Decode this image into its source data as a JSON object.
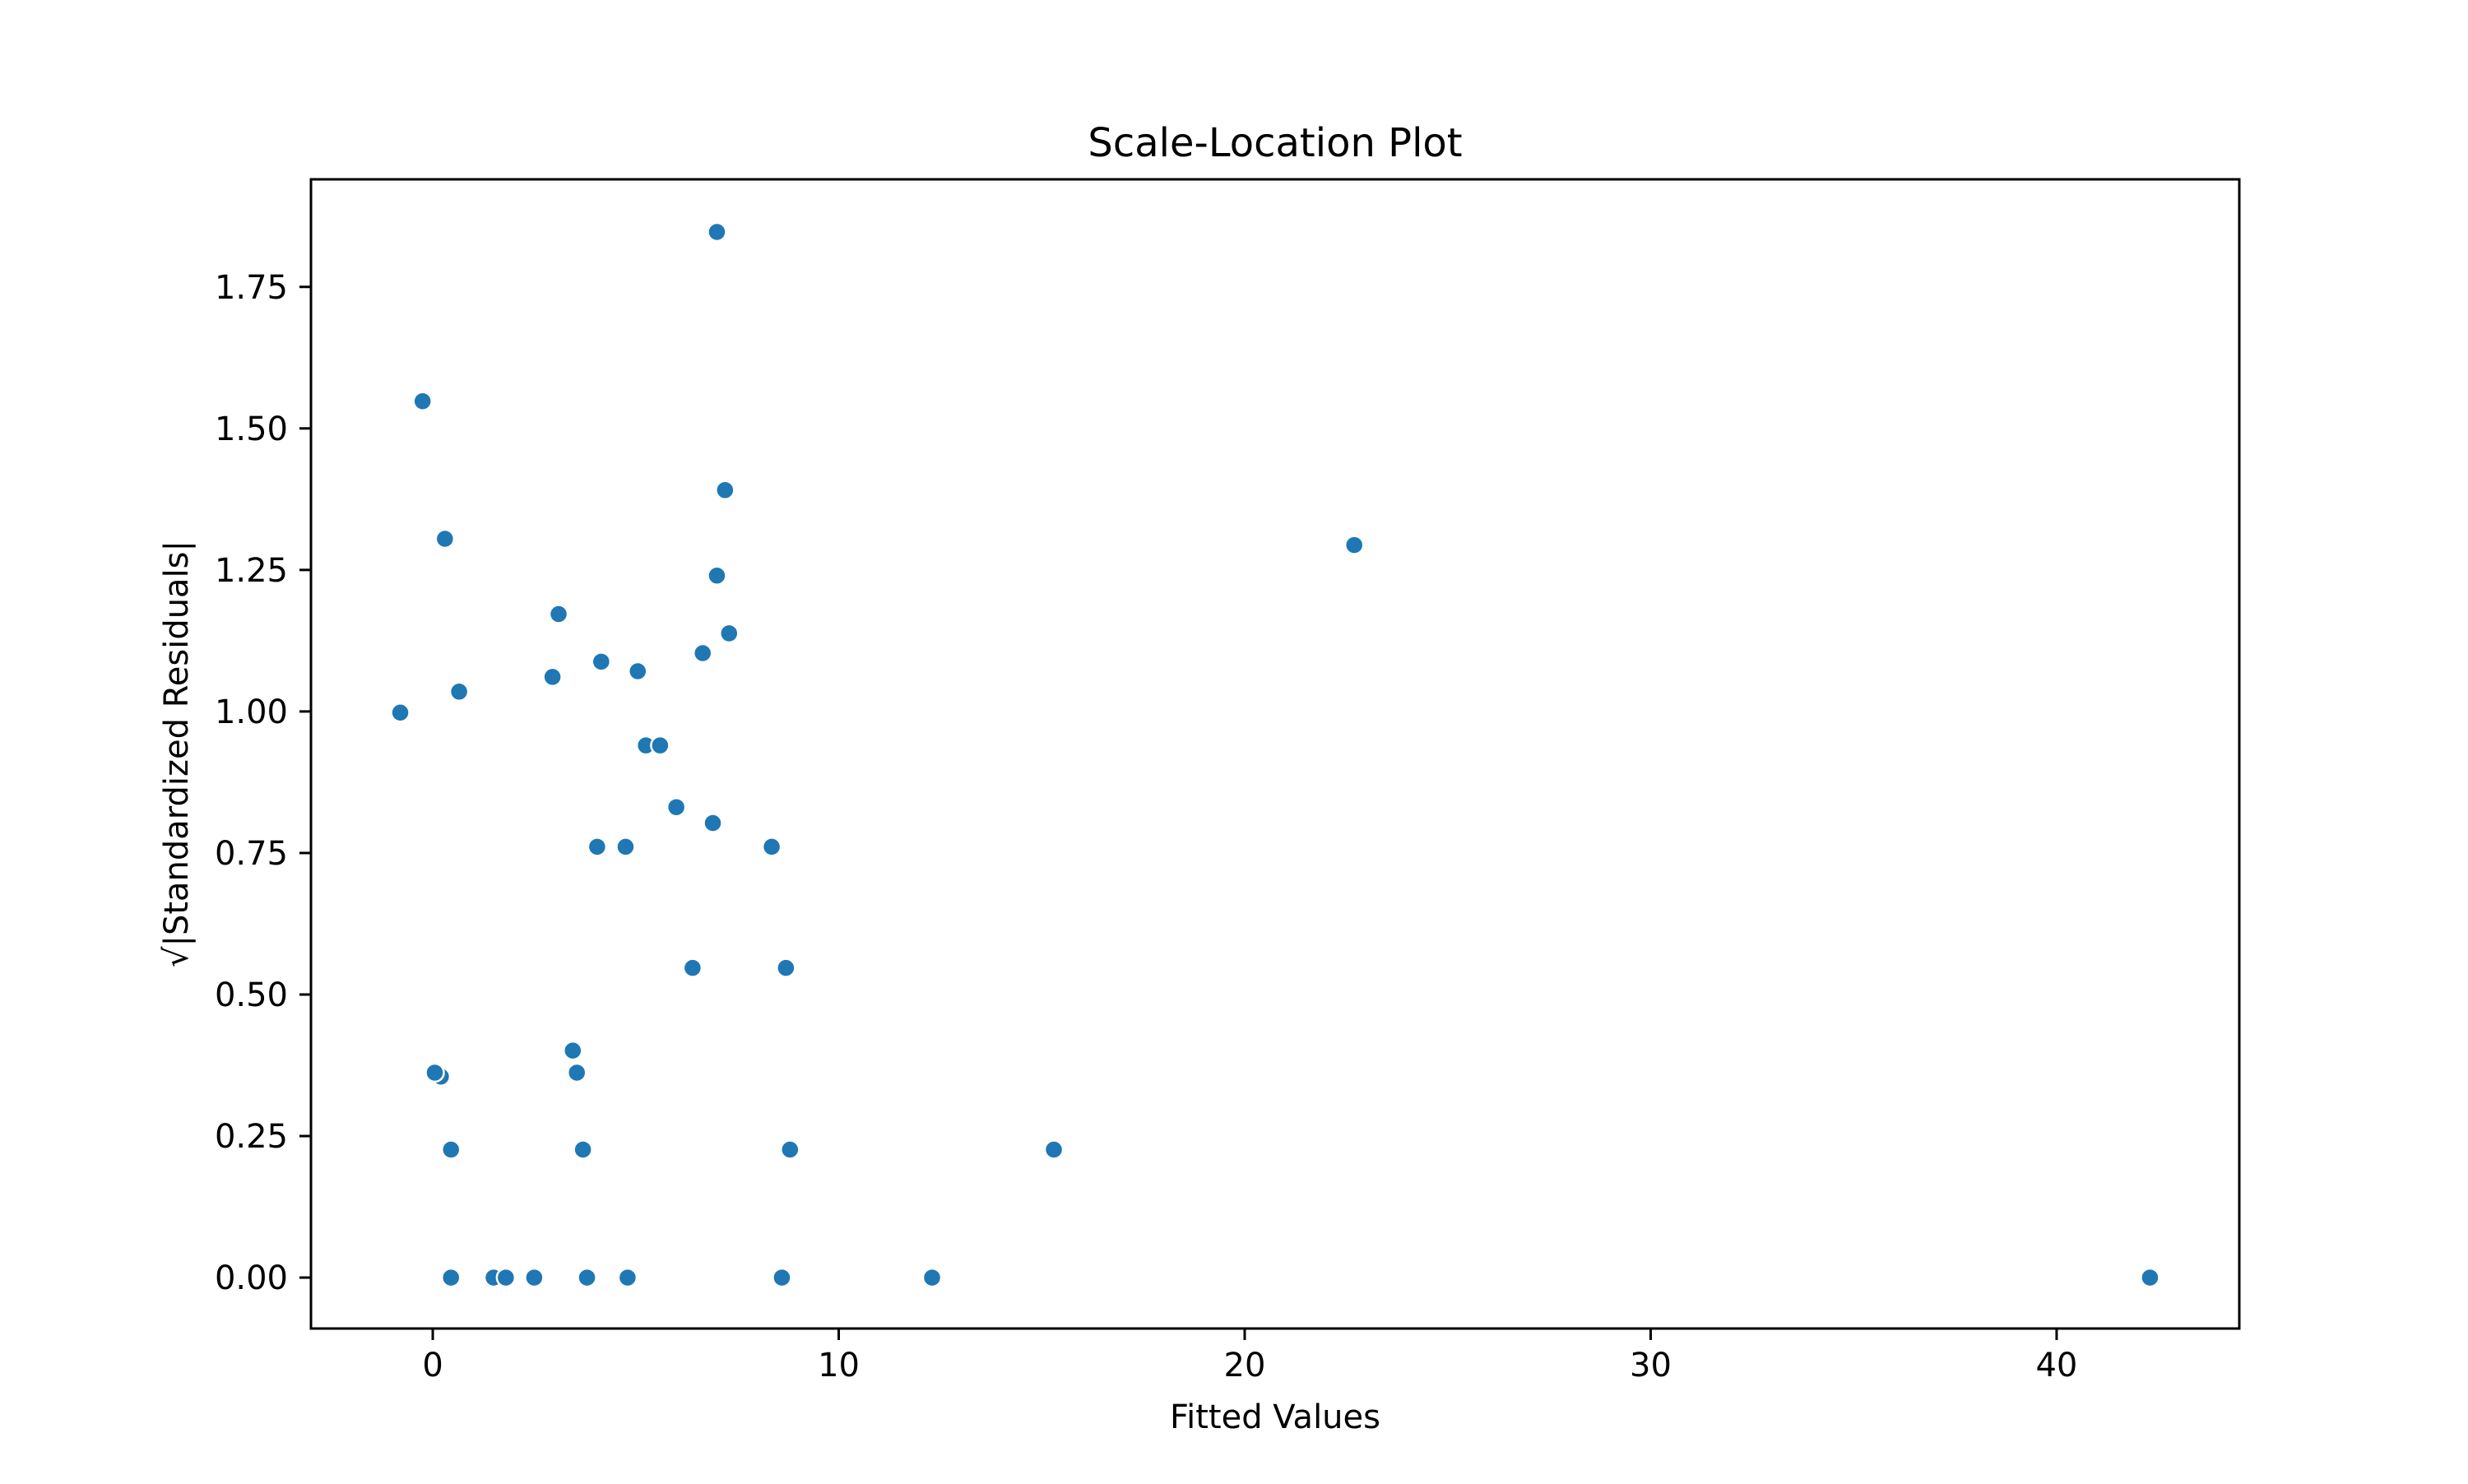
{
  "chart_data": {
    "type": "scatter",
    "title": "Scale-Location Plot",
    "xlabel": "Fitted Values",
    "ylabel": "√|Standardized Residuals|",
    "xlim": [
      -3,
      44.5
    ],
    "ylim": [
      -0.09,
      1.94
    ],
    "x_ticks": [
      0,
      10,
      20,
      30,
      40
    ],
    "x_tick_labels": [
      "0",
      "10",
      "20",
      "30",
      "40"
    ],
    "y_ticks": [
      0,
      0.25,
      0.5,
      0.75,
      1.0,
      1.25,
      1.5,
      1.75
    ],
    "y_tick_labels": [
      "0.00",
      "0.25",
      "0.50",
      "0.75",
      "1.00",
      "1.25",
      "1.50",
      "1.75"
    ],
    "grid": false,
    "point_color": "#1f77b4",
    "point_edge_color": "#ffffff",
    "points": [
      {
        "x": 7.0,
        "y": 1.847
      },
      {
        "x": -0.25,
        "y": 1.548
      },
      {
        "x": 7.2,
        "y": 1.391
      },
      {
        "x": 0.3,
        "y": 1.305
      },
      {
        "x": 22.7,
        "y": 1.294
      },
      {
        "x": 7.0,
        "y": 1.24
      },
      {
        "x": 3.1,
        "y": 1.172
      },
      {
        "x": 7.3,
        "y": 1.138
      },
      {
        "x": 6.65,
        "y": 1.103
      },
      {
        "x": 4.15,
        "y": 1.088
      },
      {
        "x": 5.05,
        "y": 1.071
      },
      {
        "x": 2.95,
        "y": 1.061
      },
      {
        "x": 0.65,
        "y": 1.035
      },
      {
        "x": -0.8,
        "y": 0.998
      },
      {
        "x": 5.25,
        "y": 0.94
      },
      {
        "x": 5.6,
        "y": 0.94
      },
      {
        "x": 6.0,
        "y": 0.831
      },
      {
        "x": 6.9,
        "y": 0.803
      },
      {
        "x": 4.05,
        "y": 0.761
      },
      {
        "x": 4.75,
        "y": 0.761
      },
      {
        "x": 8.35,
        "y": 0.761
      },
      {
        "x": 6.4,
        "y": 0.547
      },
      {
        "x": 8.7,
        "y": 0.547
      },
      {
        "x": 3.45,
        "y": 0.401
      },
      {
        "x": 0.2,
        "y": 0.355
      },
      {
        "x": 0.05,
        "y": 0.362
      },
      {
        "x": 3.55,
        "y": 0.362
      },
      {
        "x": 0.45,
        "y": 0.226
      },
      {
        "x": 3.7,
        "y": 0.226
      },
      {
        "x": 8.8,
        "y": 0.226
      },
      {
        "x": 15.3,
        "y": 0.226
      },
      {
        "x": 0.45,
        "y": 0.0
      },
      {
        "x": 1.5,
        "y": 0.0
      },
      {
        "x": 1.8,
        "y": 0.0
      },
      {
        "x": 2.5,
        "y": 0.0
      },
      {
        "x": 3.8,
        "y": 0.0
      },
      {
        "x": 4.8,
        "y": 0.0
      },
      {
        "x": 8.6,
        "y": 0.0
      },
      {
        "x": 12.3,
        "y": 0.0
      },
      {
        "x": 42.3,
        "y": 0.0
      }
    ]
  }
}
